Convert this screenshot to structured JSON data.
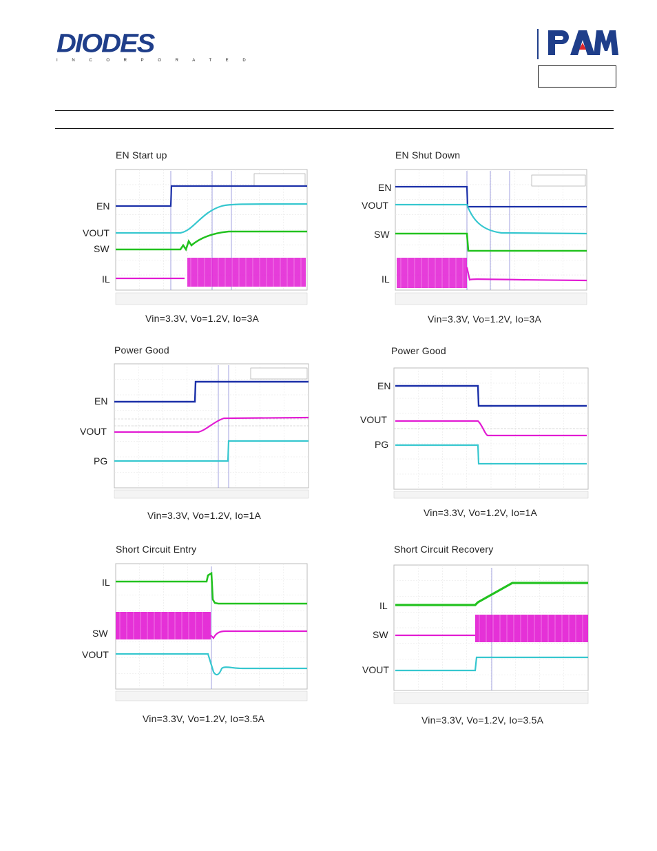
{
  "header": {
    "left_logo": {
      "word": "DIODES",
      "sub": "I N C O R P O R A T E D"
    },
    "right_logo": {
      "word": "PAM",
      "accent_color": "#e2262b",
      "brand_color": "#1f3e8a"
    }
  },
  "panels": [
    {
      "title": "EN Start  up",
      "caption": "Vin=3.3V, Vo=1.2V, Io=3A",
      "channels": [
        {
          "label": "EN",
          "color": "#1a2fa8"
        },
        {
          "label": "VOUT",
          "color": "#36c7cf"
        },
        {
          "label": "SW",
          "color": "#22c21f"
        },
        {
          "label": "IL",
          "color": "#e21bd3"
        }
      ]
    },
    {
      "title": "EN Shut Down",
      "caption": "Vin=3.3V, Vo=1.2V, Io=3A",
      "channels": [
        {
          "label": "EN",
          "color": "#1a2fa8"
        },
        {
          "label": "VOUT",
          "color": "#36c7cf"
        },
        {
          "label": "SW",
          "color": "#22c21f"
        },
        {
          "label": "IL",
          "color": "#e21bd3"
        }
      ]
    },
    {
      "title": "Power Good",
      "caption": "Vin=3.3V, Vo=1.2V, Io=1A",
      "channels": [
        {
          "label": "EN",
          "color": "#1a2fa8"
        },
        {
          "label": "VOUT",
          "color": "#e21bd3"
        },
        {
          "label": "PG",
          "color": "#36c7cf"
        }
      ]
    },
    {
      "title": "Power Good",
      "caption": "Vin=3.3V, Vo=1.2V, Io=1A",
      "channels": [
        {
          "label": "EN",
          "color": "#1a2fa8"
        },
        {
          "label": "VOUT",
          "color": "#e21bd3"
        },
        {
          "label": "PG",
          "color": "#36c7cf"
        }
      ]
    },
    {
      "title": "Short Circuit Entry",
      "caption": "Vin=3.3V, Vo=1.2V, Io=3.5A",
      "channels": [
        {
          "label": "IL",
          "color": "#22c21f"
        },
        {
          "label": "SW",
          "color": "#e21bd3"
        },
        {
          "label": "VOUT",
          "color": "#36c7cf"
        }
      ]
    },
    {
      "title": "Short Circuit Recovery",
      "caption": "Vin=3.3V, Vo=1.2V, Io=3.5A",
      "channels": [
        {
          "label": "IL",
          "color": "#22c21f"
        },
        {
          "label": "SW",
          "color": "#e21bd3"
        },
        {
          "label": "VOUT",
          "color": "#36c7cf"
        }
      ]
    }
  ]
}
